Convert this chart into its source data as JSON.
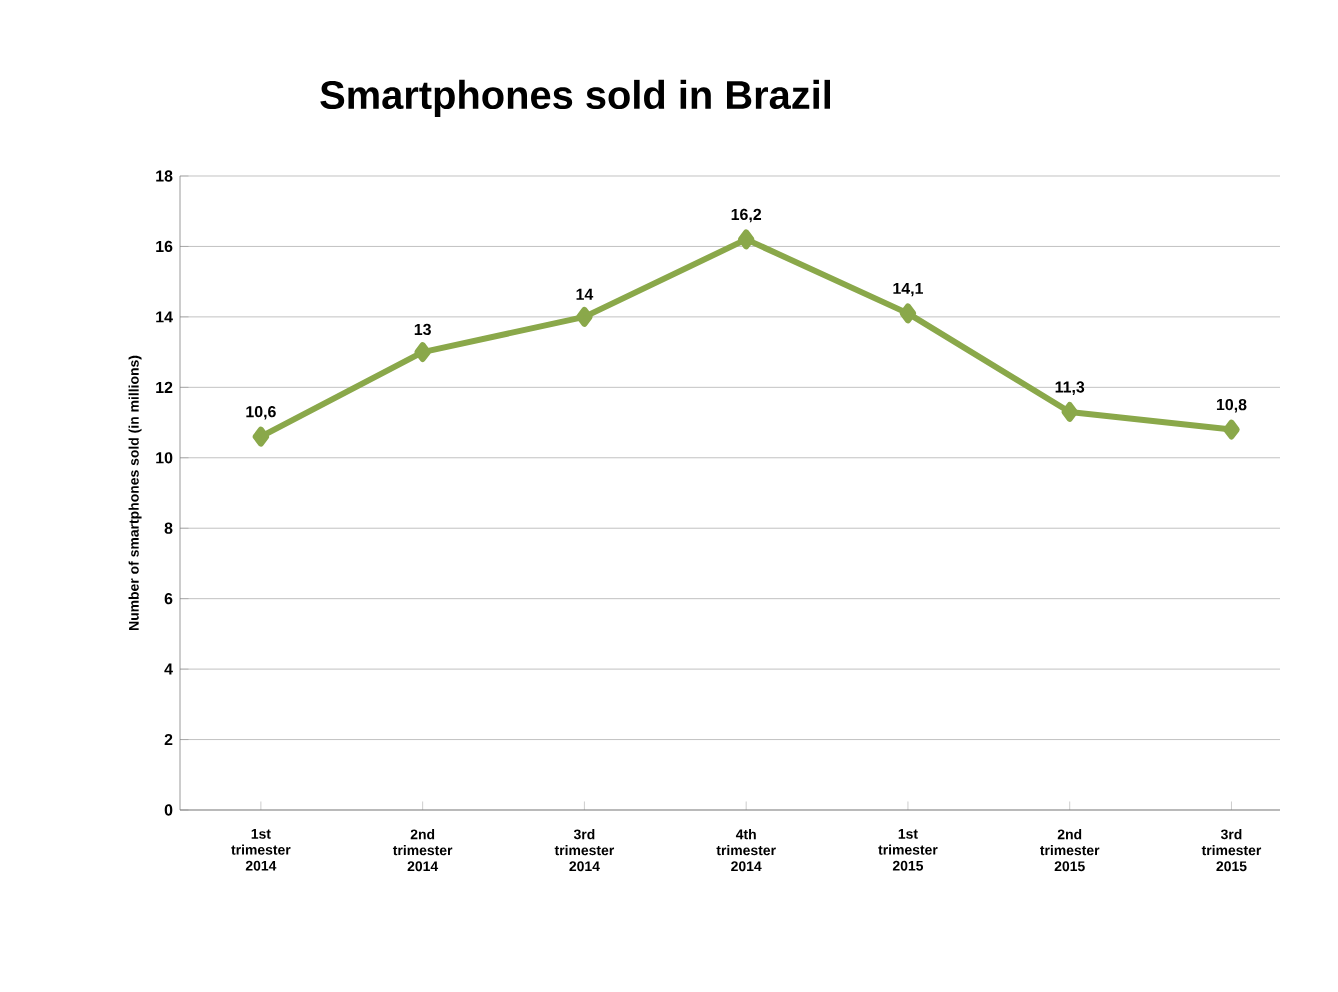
{
  "chart_data": {
    "type": "line",
    "title": "Smartphones sold in Brazil",
    "ylabel": "Number of smartphones sold (in millions)",
    "categories": [
      "1st trimester 2014",
      "2nd trimester 2014",
      "3rd trimester 2014",
      "4th trimester 2014",
      "1st trimester 2015",
      "2nd trimester 2015",
      "3rd trimester 2015"
    ],
    "series": [
      {
        "color": "#8aa84a",
        "values": [
          10.6,
          13,
          14,
          16.2,
          14.1,
          11.3,
          10.8
        ],
        "value_labels": [
          "10,6",
          "13",
          "14",
          "16,2",
          "14,1",
          "11,3",
          "10,8"
        ]
      }
    ],
    "ylim": [
      0,
      18
    ],
    "yticks": [
      0,
      2,
      4,
      6,
      8,
      10,
      12,
      14,
      16,
      18
    ],
    "grid": "y",
    "marker": "diamond",
    "line_style": "solid"
  }
}
